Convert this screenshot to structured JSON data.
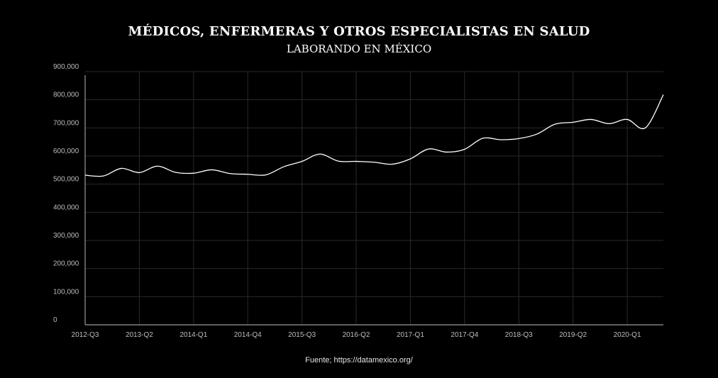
{
  "colors": {
    "background": "#000000",
    "line": "#ffffff",
    "grid": "#2a2a2a",
    "axis": "#9a9a9a",
    "text": "#bdbdbd"
  },
  "header": {
    "title": "MÉDICOS, ENFERMERAS Y OTROS ESPECIALISTAS EN SALUD",
    "subtitle": "LABORANDO EN MÉXICO"
  },
  "footer": {
    "source": "Fuente; https://datamexico.org/"
  },
  "chart_data": {
    "type": "line",
    "title": "MÉDICOS, ENFERMERAS Y OTROS ESPECIALISTAS EN SALUD",
    "subtitle": "LABORANDO EN MÉXICO",
    "xlabel": "",
    "ylabel": "",
    "ylim": [
      0,
      900000
    ],
    "grid": true,
    "y_ticks": [
      0,
      100000,
      200000,
      300000,
      400000,
      500000,
      600000,
      700000,
      800000,
      900000
    ],
    "y_tick_labels": [
      "0",
      "100,000",
      "200,000",
      "300,000",
      "400,000",
      "500,000",
      "600,000",
      "700,000",
      "800,000",
      "900,000"
    ],
    "x_tick_labels": [
      "2012-Q3",
      "2013-Q2",
      "2014-Q1",
      "2014-Q4",
      "2015-Q3",
      "2016-Q2",
      "2017-Q1",
      "2017-Q4",
      "2018-Q3",
      "2019-Q2",
      "2020-Q1"
    ],
    "categories": [
      "2012-Q3",
      "2012-Q4",
      "2013-Q1",
      "2013-Q2",
      "2013-Q3",
      "2013-Q4",
      "2014-Q1",
      "2014-Q2",
      "2014-Q3",
      "2014-Q4",
      "2015-Q1",
      "2015-Q2",
      "2015-Q3",
      "2015-Q4",
      "2016-Q1",
      "2016-Q2",
      "2016-Q3",
      "2016-Q4",
      "2017-Q1",
      "2017-Q2",
      "2017-Q3",
      "2017-Q4",
      "2018-Q1",
      "2018-Q2",
      "2018-Q3",
      "2018-Q4",
      "2019-Q1",
      "2019-Q2",
      "2019-Q3",
      "2019-Q4",
      "2020-Q1",
      "2020-Q2",
      "2020-Q3"
    ],
    "series": [
      {
        "values": [
          532000,
          529000,
          556000,
          541000,
          564000,
          542000,
          539000,
          551000,
          538000,
          535000,
          533000,
          562000,
          581000,
          607000,
          582000,
          581000,
          578000,
          571000,
          590000,
          625000,
          614000,
          624000,
          663000,
          658000,
          662000,
          678000,
          713000,
          720000,
          730000,
          715000,
          730000,
          700000,
          818000
        ]
      }
    ]
  }
}
